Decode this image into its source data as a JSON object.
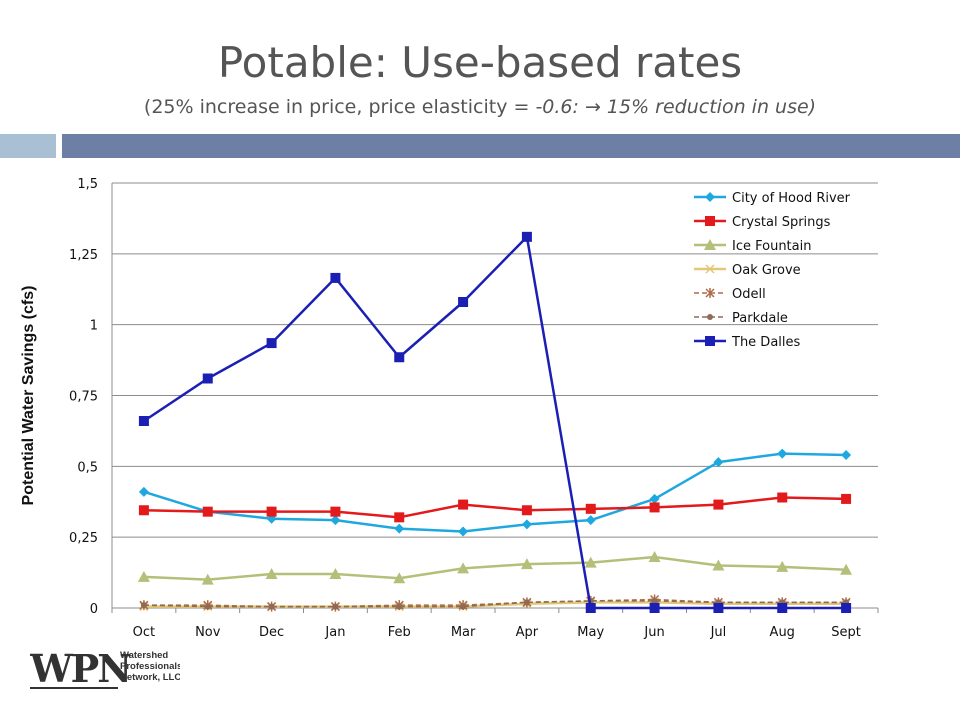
{
  "slide": {
    "title": "Potable: Use-based rates",
    "subtitle_pre": "(25% increase in price,  price elasticity = ",
    "subtitle_italic": "-0.6:  → 15% reduction in use)"
  },
  "logo": {
    "text": "WPN",
    "line1": "Watershed",
    "line2": "Professionals",
    "line3": "Network, LLC"
  },
  "colors": {
    "accent_light": "#a9bfd3",
    "accent_dark": "#6d7fa5"
  },
  "chart_data": {
    "type": "line",
    "categories": [
      "Oct",
      "Nov",
      "Dec",
      "Jan",
      "Feb",
      "Mar",
      "Apr",
      "May",
      "Jun",
      "Jul",
      "Aug",
      "Sept"
    ],
    "ylabel": "Potential Water Savings (cfs)",
    "xlabel": "",
    "ylim": [
      0,
      1.5
    ],
    "yticks": [
      "0",
      "0,25",
      "0,5",
      "0,75",
      "1",
      "1,25",
      "1,5"
    ],
    "ytick_values": [
      0,
      0.25,
      0.5,
      0.75,
      1,
      1.25,
      1.5
    ],
    "grid": true,
    "legend": "top-right",
    "series": [
      {
        "name": "City of Hood River",
        "color": "#1fa8e0",
        "marker": "diamond",
        "dashed": false,
        "values": [
          0.41,
          0.34,
          0.315,
          0.31,
          0.28,
          0.27,
          0.295,
          0.31,
          0.385,
          0.515,
          0.545,
          0.54
        ]
      },
      {
        "name": "Crystal Springs",
        "color": "#e31a1c",
        "marker": "square",
        "dashed": false,
        "values": [
          0.345,
          0.34,
          0.34,
          0.34,
          0.32,
          0.365,
          0.345,
          0.35,
          0.355,
          0.365,
          0.39,
          0.385
        ]
      },
      {
        "name": "Ice Fountain",
        "color": "#b5bf7a",
        "marker": "triangle",
        "dashed": false,
        "values": [
          0.11,
          0.1,
          0.12,
          0.12,
          0.105,
          0.14,
          0.155,
          0.16,
          0.18,
          0.15,
          0.145,
          0.135
        ]
      },
      {
        "name": "Oak Grove",
        "color": "#e2c776",
        "marker": "x",
        "dashed": false,
        "values": [
          0.005,
          0.005,
          0.005,
          0.005,
          0.005,
          0.005,
          0.015,
          0.02,
          0.02,
          0.015,
          0.015,
          0.015
        ]
      },
      {
        "name": "Odell",
        "color": "#b06a48",
        "marker": "star",
        "dashed": true,
        "values": [
          0.01,
          0.01,
          0.005,
          0.005,
          0.01,
          0.01,
          0.02,
          0.025,
          0.03,
          0.02,
          0.02,
          0.02
        ]
      },
      {
        "name": "Parkdale",
        "color": "#8f6a55",
        "marker": "circle",
        "dashed": true,
        "values": [
          0.01,
          0.005,
          0.005,
          0.005,
          0.005,
          0.005,
          0.02,
          0.025,
          0.025,
          0.02,
          0.02,
          0.02
        ]
      },
      {
        "name": "The Dalles",
        "color": "#1b1fb4",
        "marker": "square",
        "dashed": false,
        "values": [
          0.66,
          0.81,
          0.935,
          1.165,
          0.885,
          1.08,
          1.31,
          0,
          0,
          0,
          0,
          0
        ]
      }
    ]
  }
}
